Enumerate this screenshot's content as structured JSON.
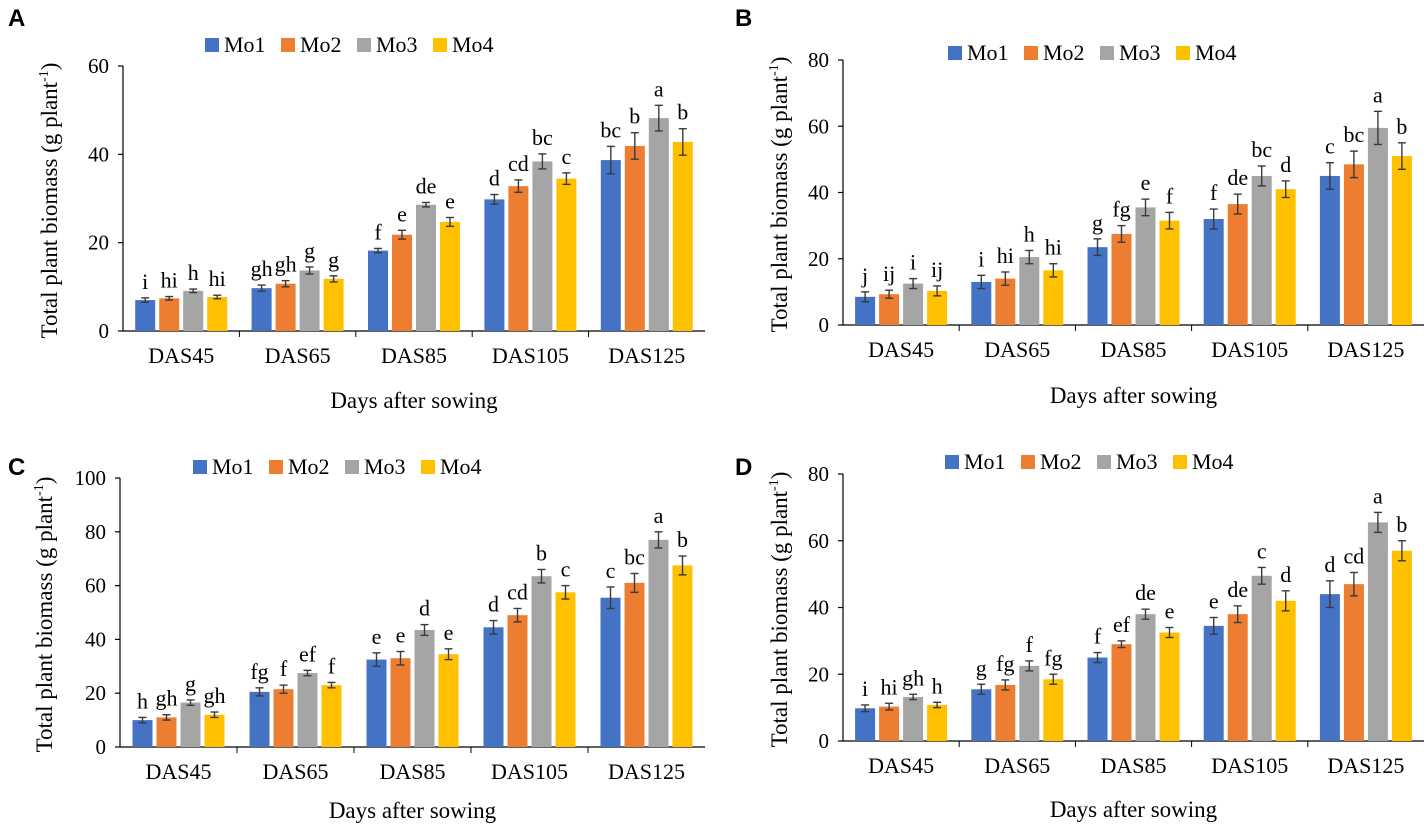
{
  "chart_data": [
    {
      "panel": "A",
      "type": "bar",
      "ylabel": "Total plant biomass (g plant",
      "ylabel_sup": "-1",
      "ylabel_end": ")",
      "xlabel": "Days after sowing",
      "ylim": [
        0,
        60
      ],
      "yticks": [
        0,
        20,
        40,
        60
      ],
      "categories": [
        "DAS45",
        "DAS65",
        "DAS85",
        "DAS105",
        "DAS125"
      ],
      "series": [
        {
          "name": "Mo1",
          "color": "#4472c4",
          "values": [
            7,
            9.7,
            18.2,
            29.8,
            38.7
          ],
          "errors": [
            0.5,
            0.7,
            0.5,
            1.1,
            3.1
          ],
          "letters": [
            "i",
            "gh",
            "f",
            "d",
            "bc"
          ]
        },
        {
          "name": "Mo2",
          "color": "#ed7d31",
          "values": [
            7.4,
            10.7,
            21.8,
            32.8,
            41.9
          ],
          "errors": [
            0.4,
            0.7,
            1.0,
            1.4,
            3.0
          ],
          "letters": [
            "hi",
            "gh",
            "e",
            "cd",
            "b"
          ]
        },
        {
          "name": "Mo3",
          "color": "#a5a5a5",
          "values": [
            9.1,
            13.7,
            28.6,
            38.4,
            48.2
          ],
          "errors": [
            0.4,
            0.8,
            0.5,
            1.7,
            2.9
          ],
          "letters": [
            "h",
            "g",
            "de",
            "bc",
            "a"
          ]
        },
        {
          "name": "Mo4",
          "color": "#ffc000",
          "values": [
            7.7,
            11.8,
            24.7,
            34.5,
            42.8
          ],
          "errors": [
            0.4,
            0.7,
            1.0,
            1.3,
            3.0
          ],
          "letters": [
            "hi",
            "g",
            "e",
            "c",
            "b"
          ]
        }
      ]
    },
    {
      "panel": "B",
      "type": "bar",
      "ylabel": "Total plant biomass (g plant",
      "ylabel_sup": "-1",
      "ylabel_end": ")",
      "xlabel": "Days after sowing",
      "ylim": [
        0,
        80
      ],
      "yticks": [
        0,
        20,
        40,
        60,
        80
      ],
      "categories": [
        "DAS45",
        "DAS65",
        "DAS85",
        "DAS105",
        "DAS125"
      ],
      "series": [
        {
          "name": "Mo1",
          "color": "#4472c4",
          "values": [
            8.5,
            13,
            23.5,
            32,
            45
          ],
          "errors": [
            1.5,
            2.0,
            2.5,
            3.0,
            4.0
          ],
          "letters": [
            "j",
            "i",
            "g",
            "f",
            "c"
          ]
        },
        {
          "name": "Mo2",
          "color": "#ed7d31",
          "values": [
            9.3,
            14,
            27.5,
            36.5,
            48.5
          ],
          "errors": [
            1.2,
            2.0,
            2.5,
            3.0,
            4.0
          ],
          "letters": [
            "ij",
            "hi",
            "fg",
            "de",
            "bc"
          ]
        },
        {
          "name": "Mo3",
          "color": "#a5a5a5",
          "values": [
            12.5,
            20.5,
            35.5,
            45,
            59.5
          ],
          "errors": [
            1.5,
            2.0,
            2.5,
            3.0,
            5.0
          ],
          "letters": [
            "i",
            "h",
            "e",
            "bc",
            "a"
          ]
        },
        {
          "name": "Mo4",
          "color": "#ffc000",
          "values": [
            10.3,
            16.5,
            31.5,
            41,
            51
          ],
          "errors": [
            1.5,
            2.0,
            2.5,
            2.5,
            4.0
          ],
          "letters": [
            "ij",
            "hi",
            "f",
            "d",
            "b"
          ]
        }
      ]
    },
    {
      "panel": "C",
      "type": "bar",
      "ylabel": "Total plant biomass (g plant",
      "ylabel_sup": "-1",
      "ylabel_end": ")",
      "xlabel": "Days after sowing",
      "ylim": [
        0,
        100
      ],
      "yticks": [
        0,
        20,
        40,
        60,
        80,
        100
      ],
      "categories": [
        "DAS45",
        "DAS65",
        "DAS85",
        "DAS105",
        "DAS125"
      ],
      "series": [
        {
          "name": "Mo1",
          "color": "#4472c4",
          "values": [
            10,
            20.5,
            32.5,
            44.5,
            55.5
          ],
          "errors": [
            1.0,
            1.5,
            2.5,
            2.5,
            4.0
          ],
          "letters": [
            "h",
            "fg",
            "e",
            "d",
            "c"
          ]
        },
        {
          "name": "Mo2",
          "color": "#ed7d31",
          "values": [
            11,
            21.5,
            33,
            49,
            61
          ],
          "errors": [
            1.0,
            1.5,
            2.5,
            2.5,
            3.5
          ],
          "letters": [
            "gh",
            "f",
            "e",
            "cd",
            "bc"
          ]
        },
        {
          "name": "Mo3",
          "color": "#a5a5a5",
          "values": [
            16.5,
            27.5,
            43.5,
            63.5,
            77
          ],
          "errors": [
            1.0,
            1.0,
            2.0,
            2.5,
            3.0
          ],
          "letters": [
            "g",
            "ef",
            "d",
            "b",
            "a"
          ]
        },
        {
          "name": "Mo4",
          "color": "#ffc000",
          "values": [
            12,
            23,
            34.5,
            57.5,
            67.5
          ],
          "errors": [
            1.0,
            1.0,
            2.0,
            2.5,
            3.5
          ],
          "letters": [
            "gh",
            "f",
            "e",
            "c",
            "b"
          ]
        }
      ]
    },
    {
      "panel": "D",
      "type": "bar",
      "ylabel": "Total plant biomass (g plant",
      "ylabel_sup": "-1",
      "ylabel_end": ")",
      "xlabel": "Days after sowing",
      "ylim": [
        0,
        80
      ],
      "yticks": [
        0,
        20,
        40,
        60,
        80
      ],
      "categories": [
        "DAS45",
        "DAS65",
        "DAS85",
        "DAS105",
        "DAS125"
      ],
      "series": [
        {
          "name": "Mo1",
          "color": "#4472c4",
          "values": [
            9.8,
            15.5,
            25,
            34.5,
            44
          ],
          "errors": [
            1.0,
            1.5,
            1.5,
            2.5,
            4.0
          ],
          "letters": [
            "i",
            "g",
            "f",
            "e",
            "d"
          ]
        },
        {
          "name": "Mo2",
          "color": "#ed7d31",
          "values": [
            10.3,
            16.8,
            29,
            38,
            47
          ],
          "errors": [
            1.0,
            1.5,
            1.0,
            2.5,
            3.5
          ],
          "letters": [
            "hi",
            "fg",
            "ef",
            "de",
            "cd"
          ]
        },
        {
          "name": "Mo3",
          "color": "#a5a5a5",
          "values": [
            13.2,
            22.5,
            38,
            49.5,
            65.5
          ],
          "errors": [
            0.8,
            1.5,
            1.5,
            2.5,
            3.0
          ],
          "letters": [
            "gh",
            "f",
            "de",
            "c",
            "a"
          ]
        },
        {
          "name": "Mo4",
          "color": "#ffc000",
          "values": [
            10.8,
            18.5,
            32.5,
            42,
            57
          ],
          "errors": [
            0.8,
            1.5,
            1.5,
            3.0,
            3.0
          ],
          "letters": [
            "h",
            "fg",
            "e",
            "d",
            "b"
          ]
        }
      ]
    }
  ]
}
